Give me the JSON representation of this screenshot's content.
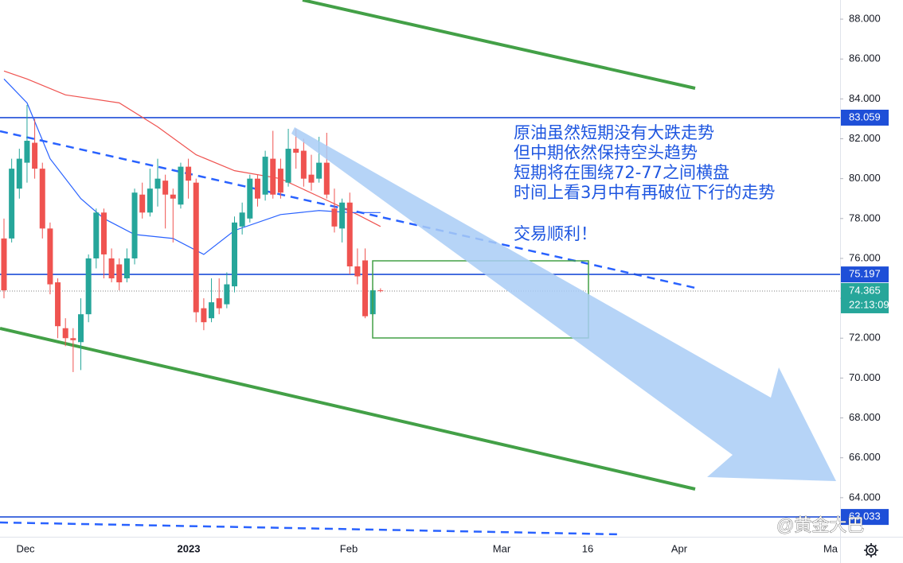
{
  "chart_data": {
    "type": "candlestick",
    "up_color": "#26a69a",
    "down_color": "#ef5350",
    "open": [
      77.0,
      77.0,
      79.5,
      80.8,
      81.8,
      80.5,
      77.5,
      74.8,
      72.5,
      72.0,
      71.8,
      73.2,
      76.0,
      78.3,
      76.0,
      75.7,
      75.0,
      76.0,
      79.2,
      78.3,
      79.5,
      79.9,
      79.2,
      78.7,
      80.6,
      79.8,
      73.5,
      73.0,
      74.0,
      73.7,
      74.6,
      77.6,
      78.0,
      80.0,
      79.2,
      81.0,
      80.5,
      79.8,
      81.5,
      81.4,
      80.2,
      80.0,
      80.8,
      78.5,
      77.5,
      78.8,
      75.6,
      75.9,
      73.2,
      74.4
    ],
    "high": [
      78.0,
      81.0,
      81.5,
      83.7,
      83.0,
      80.8,
      77.8,
      75.0,
      73.0,
      72.5,
      74.0,
      76.2,
      78.5,
      78.5,
      76.5,
      76.0,
      76.5,
      79.5,
      79.8,
      80.5,
      81.0,
      80.2,
      79.5,
      80.8,
      81.0,
      80.0,
      74.0,
      75.0,
      75.0,
      75.3,
      78.1,
      78.8,
      80.2,
      80.2,
      81.4,
      82.4,
      81.0,
      82.5,
      82.5,
      82.0,
      81.2,
      82.1,
      82.3,
      79.5,
      79.0,
      79.3,
      76.5,
      76.5,
      74.5,
      74.5
    ],
    "low": [
      74.0,
      76.8,
      79.0,
      79.8,
      80.0,
      77.0,
      74.2,
      72.0,
      71.6,
      70.3,
      70.4,
      72.8,
      75.5,
      75.0,
      74.8,
      74.4,
      74.8,
      75.7,
      78.0,
      78.1,
      78.6,
      77.5,
      76.8,
      78.5,
      79.0,
      72.8,
      72.4,
      72.8,
      73.2,
      73.5,
      74.3,
      77.2,
      77.8,
      78.6,
      78.9,
      79.0,
      79.0,
      79.6,
      80.5,
      79.6,
      79.4,
      79.8,
      79.0,
      77.3,
      76.8,
      75.2,
      74.7,
      73.0,
      73.1,
      74.3
    ],
    "close": [
      74.4,
      80.5,
      81.0,
      81.9,
      80.5,
      77.5,
      74.7,
      72.6,
      72.0,
      71.9,
      73.2,
      76.0,
      78.3,
      76.2,
      75.0,
      74.8,
      76.0,
      79.3,
      78.3,
      79.5,
      80.0,
      79.2,
      79.0,
      80.6,
      79.9,
      73.3,
      72.8,
      73.8,
      73.5,
      74.7,
      77.8,
      78.3,
      80.0,
      79.0,
      81.1,
      79.2,
      79.3,
      81.5,
      81.3,
      80.0,
      79.8,
      80.8,
      79.2,
      77.6,
      78.8,
      75.6,
      75.1,
      73.1,
      74.4,
      74.365
    ],
    "moving_averages": [
      {
        "color": "#ef5350",
        "x": [
          0,
          3,
          8,
          15,
          20,
          25,
          30,
          36,
          41,
          46,
          49
        ],
        "values": [
          85.4,
          85.0,
          84.2,
          83.8,
          82.6,
          81.2,
          80.4,
          80.0,
          79.1,
          78.2,
          77.6
        ]
      },
      {
        "color": "#2962ff",
        "x": [
          0,
          3,
          6,
          10,
          13,
          17,
          22,
          26,
          30,
          36,
          41,
          45,
          49
        ],
        "values": [
          85.0,
          83.8,
          81.0,
          79.0,
          78.0,
          77.2,
          77.0,
          76.2,
          77.4,
          78.2,
          78.4,
          78.3,
          78.3
        ]
      }
    ],
    "ylim": [
      62.04,
      88.96
    ],
    "yticks": [
      {
        "value": 64,
        "label": "64.000"
      },
      {
        "value": 66,
        "label": "66.000"
      },
      {
        "value": 68,
        "label": "68.000"
      },
      {
        "value": 70,
        "label": "70.000"
      },
      {
        "value": 72,
        "label": "72.000"
      },
      {
        "value": 74,
        "label": "74.000"
      },
      {
        "value": 76,
        "label": "76.000"
      },
      {
        "value": 78,
        "label": "78.000"
      },
      {
        "value": 80,
        "label": "80.000"
      },
      {
        "value": 82,
        "label": "82.000"
      },
      {
        "value": 84,
        "label": "84.000"
      },
      {
        "value": 86,
        "label": "86.000"
      },
      {
        "value": 88,
        "label": "88.000"
      }
    ],
    "levels": [
      {
        "value": 83.059,
        "label": "83.059",
        "color": "#1e4fd8",
        "style": "solid"
      },
      {
        "value": 75.197,
        "label": "75.197",
        "color": "#1e4fd8",
        "style": "solid"
      },
      {
        "value": 74.365,
        "label": "74.365",
        "color": "#26a69a",
        "style": "dotted"
      },
      {
        "value": 63.033,
        "label": "63.033",
        "color": "#1e4fd8",
        "style": "solid"
      }
    ],
    "countdown": "22:13:09",
    "x_labels": [
      "Dec",
      "2023",
      "Feb",
      "Mar",
      "16",
      "Apr",
      "Ma"
    ],
    "annotation": [
      "原油虽然短期没有大跌走势",
      "但中期依然保持空头趋势",
      "短期将在围绕72-77之间横盘",
      "时间上看3月中有再破位下行的走势"
    ],
    "closing_note": "交易顺利！",
    "watermark": "@黄金大巴"
  }
}
